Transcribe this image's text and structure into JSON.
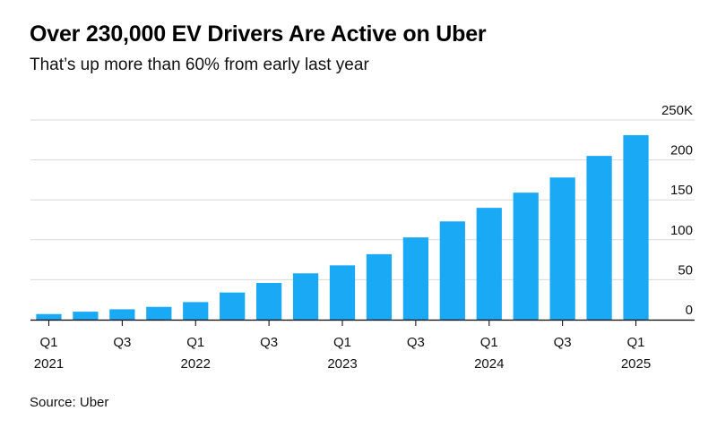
{
  "title": "Over 230,000 EV Drivers Are Active on Uber",
  "subtitle": "That’s up more than 60% from early last year",
  "source": "Source: Uber",
  "colors": {
    "bar": "#1aaaf5",
    "grid": "#d9d9d9",
    "axis": "#000000"
  },
  "chart_data": {
    "type": "bar",
    "categories": [
      "Q1 2021",
      "Q2 2021",
      "Q3 2021",
      "Q4 2021",
      "Q1 2022",
      "Q2 2022",
      "Q3 2022",
      "Q4 2022",
      "Q1 2023",
      "Q2 2023",
      "Q3 2023",
      "Q4 2023",
      "Q1 2024",
      "Q2 2024",
      "Q3 2024",
      "Q4 2024",
      "Q1 2025"
    ],
    "values": [
      7,
      10,
      13,
      16,
      22,
      34,
      46,
      58,
      68,
      82,
      103,
      123,
      140,
      159,
      178,
      205,
      231
    ],
    "ylim": [
      0,
      250
    ],
    "y_ticks": [
      {
        "value": 0,
        "label": "0"
      },
      {
        "value": 50,
        "label": "50"
      },
      {
        "value": 100,
        "label": "100"
      },
      {
        "value": 150,
        "label": "150"
      },
      {
        "value": 200,
        "label": "200"
      },
      {
        "value": 250,
        "label": "250K"
      }
    ],
    "x_ticks": [
      {
        "index": 0,
        "label": "Q1",
        "sublabel": "2021"
      },
      {
        "index": 2,
        "label": "Q3",
        "sublabel": ""
      },
      {
        "index": 4,
        "label": "Q1",
        "sublabel": "2022"
      },
      {
        "index": 6,
        "label": "Q3",
        "sublabel": ""
      },
      {
        "index": 8,
        "label": "Q1",
        "sublabel": "2023"
      },
      {
        "index": 10,
        "label": "Q3",
        "sublabel": ""
      },
      {
        "index": 12,
        "label": "Q1",
        "sublabel": "2024"
      },
      {
        "index": 14,
        "label": "Q3",
        "sublabel": ""
      },
      {
        "index": 16,
        "label": "Q1",
        "sublabel": "2025"
      }
    ],
    "y_axis_position": "right",
    "grid": true,
    "legend": "none"
  }
}
